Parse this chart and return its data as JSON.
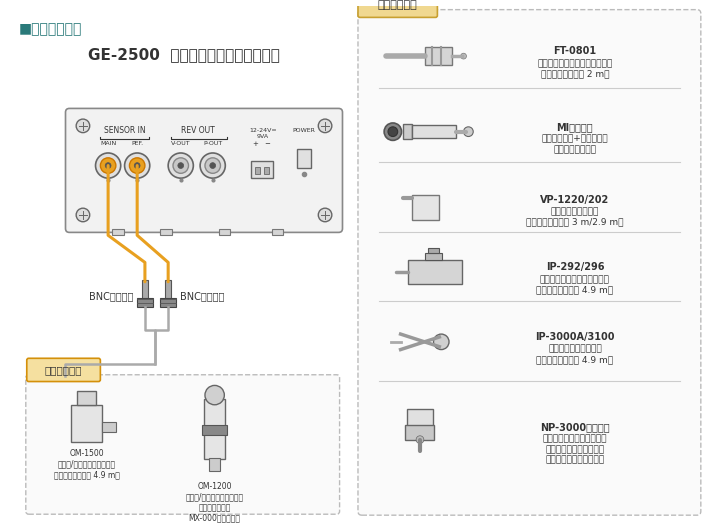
{
  "title_section": "■システム構成",
  "device_title": "GE-2500  ディーゼルエンジン回転計",
  "bg_color": "#ffffff",
  "title_color": "#2a7a7a",
  "orange_color": "#e8a020",
  "dark_color": "#333333",
  "label_sensor_measurement": "計測用センサ",
  "label_sensor_calibration": "校正用センサ",
  "label_bnc_left": "BNCコネクタ",
  "label_bnc_right": "BNCコネクタ",
  "sensor_in_label": "SENSOR IN",
  "rev_out_label": "REV OUT",
  "main_label": "MAIN",
  "pef_label": "PEF.",
  "vout_label": "V-OUT",
  "pout_label": "P-OUT",
  "power_label": "POWER",
  "voltage_label": "12-24V=\n9VA",
  "om1500_label": "OM-1500\nモータ/エンジン回転検出器\n（ケーブル直出し 4.9 m）",
  "om1200_label": "OM-1200\nモータ/エンジン回転検出器\n（ケーブル別売\nMX-000シリーズ）",
  "sensors": [
    {
      "model": "FT-0801",
      "desc": "シガーライターソケットセンサ\n（ケーブル直出し 2 m）"
    },
    {
      "model": "MIシリーズ",
      "desc": "マイクロホン+プリアンプ\n（ケーブル別売）"
    },
    {
      "model": "VP-1220/202",
      "desc": "エンジン回転検出器\n（ケーブル直出し 3 m/2.9 m）"
    },
    {
      "model": "IP-292/296",
      "desc": "イグニッションパルス検出器\n（ケーブル直出し 4.9 m）"
    },
    {
      "model": "IP-3000A/3100",
      "desc": "イグニッション検出器\n（ケーブル直出し 4.9 m）"
    },
    {
      "model": "NP-3000シリーズ",
      "desc": "アンプ内蔵型加速度検出器\n（ケーブルについては、\n製品毎に確認ください）"
    }
  ]
}
